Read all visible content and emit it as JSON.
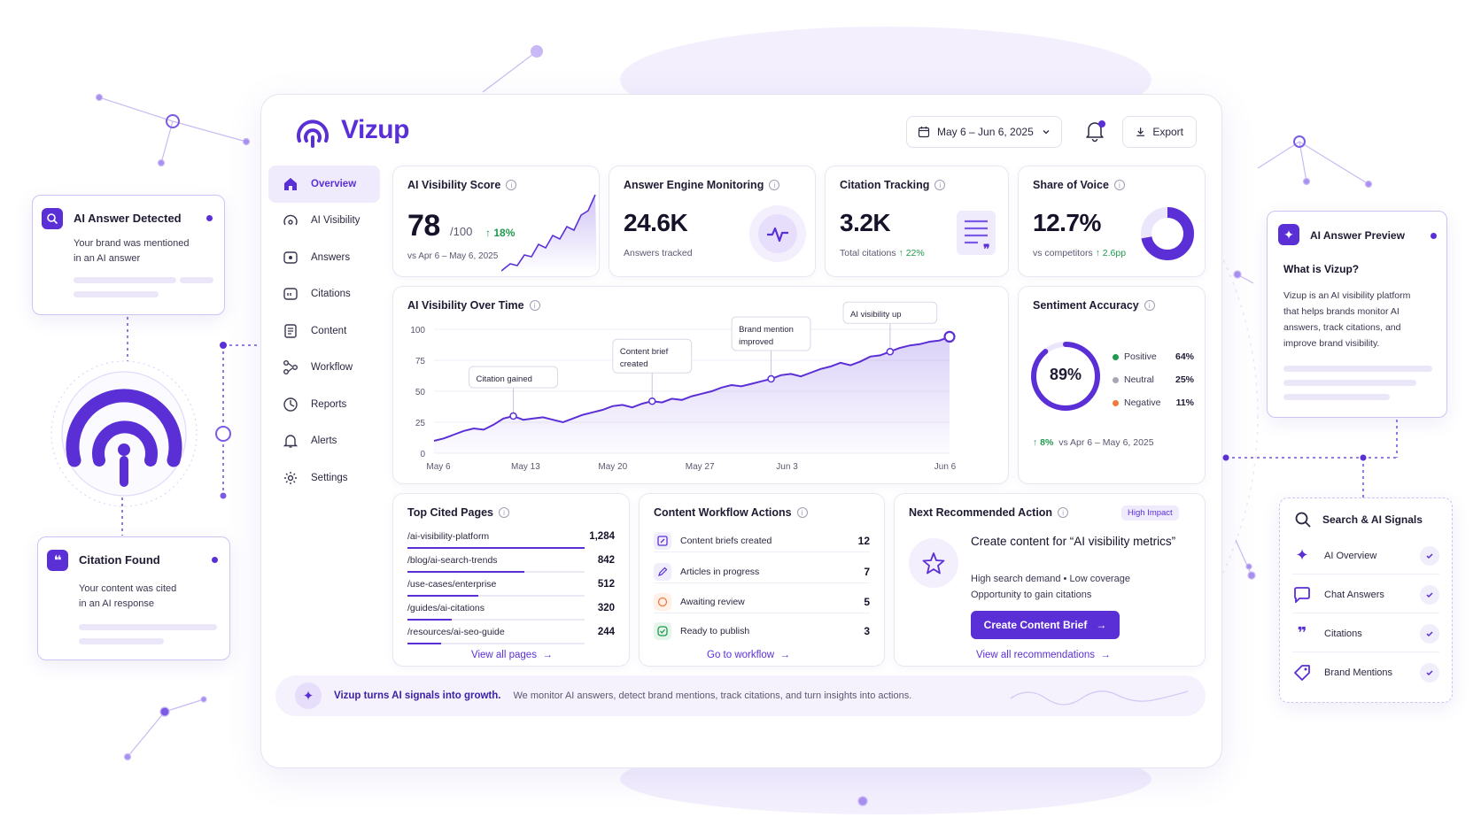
{
  "brand": {
    "name": "Vizup",
    "accent": "#5b2fd6"
  },
  "header": {
    "date_range": "May 6 – Jun 6, 2025",
    "export_label": "Export"
  },
  "sidebar": {
    "items": [
      {
        "label": "Overview",
        "icon": "home-icon"
      },
      {
        "label": "AI Visibility",
        "icon": "visibility-icon"
      },
      {
        "label": "Answers",
        "icon": "answers-icon"
      },
      {
        "label": "Citations",
        "icon": "citations-icon"
      },
      {
        "label": "Content",
        "icon": "content-icon"
      },
      {
        "label": "Workflow",
        "icon": "workflow-icon"
      },
      {
        "label": "Reports",
        "icon": "reports-icon"
      },
      {
        "label": "Alerts",
        "icon": "bell-icon"
      },
      {
        "label": "Settings",
        "icon": "gear-icon"
      }
    ]
  },
  "kpis": {
    "visibility": {
      "title": "AI Visibility Score",
      "value": "78",
      "suffix": "/100",
      "delta": "18%",
      "sub": "vs Apr 6 – May 6, 2025"
    },
    "answers": {
      "title": "Answer Engine Monitoring",
      "value": "24.6K",
      "sub": "Answers tracked"
    },
    "citations": {
      "title": "Citation Tracking",
      "value": "3.2K",
      "sub": "Total citations",
      "delta": "22%"
    },
    "share": {
      "title": "Share of Voice",
      "value": "12.7%",
      "sub": "vs competitors",
      "delta": "2.6pp",
      "fraction": 0.127
    }
  },
  "chart_data": {
    "type": "area",
    "title": "AI Visibility Over Time",
    "x_ticks": [
      "May 6",
      "May 13",
      "May 20",
      "May 27",
      "Jun 3",
      "Jun 6"
    ],
    "y_ticks": [
      0,
      25,
      50,
      75,
      100
    ],
    "ylim": [
      0,
      100
    ],
    "values": [
      10,
      12,
      15,
      18,
      20,
      19,
      23,
      28,
      30,
      27,
      28,
      29,
      27,
      25,
      28,
      31,
      33,
      35,
      38,
      39,
      37,
      40,
      42,
      41,
      44,
      43,
      46,
      48,
      50,
      53,
      55,
      54,
      56,
      58,
      60,
      63,
      64,
      62,
      65,
      68,
      70,
      73,
      71,
      74,
      78,
      79,
      82,
      85,
      87,
      88,
      90,
      91,
      94
    ],
    "annotations": [
      {
        "label": "Citation gained",
        "index": 8
      },
      {
        "label": "Content brief created",
        "index": 22
      },
      {
        "label": "Brand mention improved",
        "index": 34
      },
      {
        "label": "AI visibility up",
        "index": 46
      }
    ]
  },
  "sentiment": {
    "title": "Sentiment Accuracy",
    "value": "89%",
    "fraction": 0.89,
    "items": [
      {
        "label": "Positive",
        "value": "64%",
        "color": "#1f9a4e"
      },
      {
        "label": "Neutral",
        "value": "25%",
        "color": "#a9a6b8"
      },
      {
        "label": "Negative",
        "value": "11%",
        "color": "#f07a3c"
      }
    ],
    "delta": "8%",
    "delta_sub": "vs Apr 6 – May 6, 2025"
  },
  "top_pages": {
    "title": "Top Cited Pages",
    "rows": [
      {
        "path": "/ai-visibility-platform",
        "count": "1,284",
        "fill": 1.0
      },
      {
        "path": "/blog/ai-search-trends",
        "count": "842",
        "fill": 0.66
      },
      {
        "path": "/use-cases/enterprise",
        "count": "512",
        "fill": 0.4
      },
      {
        "path": "/guides/ai-citations",
        "count": "320",
        "fill": 0.25
      },
      {
        "path": "/resources/ai-seo-guide",
        "count": "244",
        "fill": 0.19
      }
    ],
    "link": "View all pages"
  },
  "workflow": {
    "title": "Content Workflow Actions",
    "rows": [
      {
        "label": "Content briefs created",
        "count": "12",
        "icon": "edit-icon"
      },
      {
        "label": "Articles in progress",
        "count": "7",
        "icon": "pen-icon"
      },
      {
        "label": "Awaiting review",
        "count": "5",
        "icon": "clock-icon"
      },
      {
        "label": "Ready to publish",
        "count": "3",
        "icon": "check-icon"
      }
    ],
    "link": "Go to workflow"
  },
  "recommend": {
    "title": "Next Recommended Action",
    "badge": "High Impact",
    "headline": "Create content for “AI visibility metrics”",
    "line1": "High search demand  •  Low coverage",
    "line2": "Opportunity to gain citations",
    "button": "Create Content Brief",
    "link": "View all recommendations"
  },
  "footer": {
    "headline": "Vizup turns AI signals into growth.",
    "text": "We monitor AI answers, detect brand mentions, track citations, and turn insights into actions."
  },
  "float_answer": {
    "title": "AI Answer Detected",
    "text1": "Your brand was mentioned",
    "text2": "in an AI answer"
  },
  "float_citation": {
    "title": "Citation Found",
    "text1": "Your content was cited",
    "text2": "in an AI response"
  },
  "float_preview": {
    "title": "AI Answer Preview",
    "question": "What is Vizup?",
    "lines": [
      "Vizup is an AI visibility platform",
      "that helps brands monitor AI",
      "answers, track citations, and",
      "improve brand visibility."
    ]
  },
  "float_signals": {
    "title": "Search & AI Signals",
    "items": [
      {
        "label": "AI Overview",
        "icon": "sparkle-icon"
      },
      {
        "label": "Chat Answers",
        "icon": "chat-icon"
      },
      {
        "label": "Citations",
        "icon": "quote-icon"
      },
      {
        "label": "Brand Mentions",
        "icon": "tag-icon"
      }
    ]
  }
}
